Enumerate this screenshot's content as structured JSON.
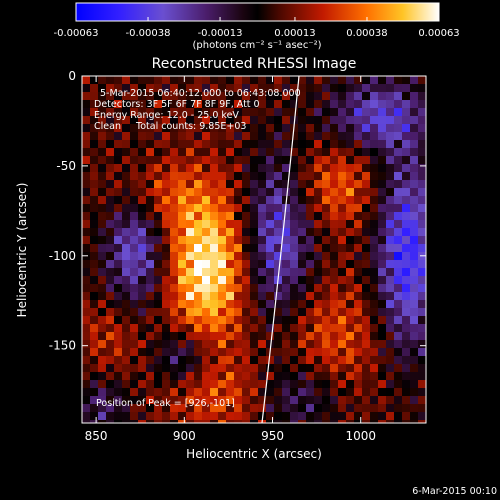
{
  "colorbar": {
    "tick_labels": [
      "-0.00063",
      "-0.00038",
      "-0.00013",
      "0.00013",
      "0.00038",
      "0.00063"
    ],
    "tick_values": [
      -0.00063,
      -0.00038,
      -0.00013,
      0.00013,
      0.00038,
      0.00063
    ],
    "range": [
      -0.00063,
      0.00063
    ],
    "colors": [
      "#0000ff",
      "#4a2cff",
      "#5b3fa8",
      "#3a1030",
      "#000000",
      "#5a0a00",
      "#c02000",
      "#ff7a00",
      "#ffc020",
      "#ffffff"
    ],
    "units_line": "(photons cm⁻² s⁻¹ asec⁻²)"
  },
  "image": {
    "title": "Reconstructed RHESSI Image",
    "xlabel": "Heliocentric X (arcsec)",
    "ylabel": "Heliocentric Y (arcsec)",
    "x_ticks": [
      "850",
      "900",
      "950",
      "1000"
    ],
    "x_tick_values": [
      850,
      900,
      950,
      1000
    ],
    "y_ticks": [
      "0",
      "-50",
      "-100",
      "-150"
    ],
    "y_tick_values": [
      0,
      -50,
      -100,
      -150
    ],
    "xlim": [
      842,
      1037
    ],
    "ylim": [
      -193,
      0
    ],
    "annotations": [
      "5-Mar-2015 06:40:12.000 to 06:43:08.000",
      "Detectors: 3F 5F 6F 7F 8F 9F, Att 0",
      "Energy Range: 12.0 - 25.0 keV",
      "Clean     Total counts: 9.85E+03"
    ],
    "peak_label": "Position of Peak = [926,-101]",
    "limb_color": "#ffffff"
  },
  "footer": {
    "timestamp": "6-Mar-2015 00:10"
  }
}
